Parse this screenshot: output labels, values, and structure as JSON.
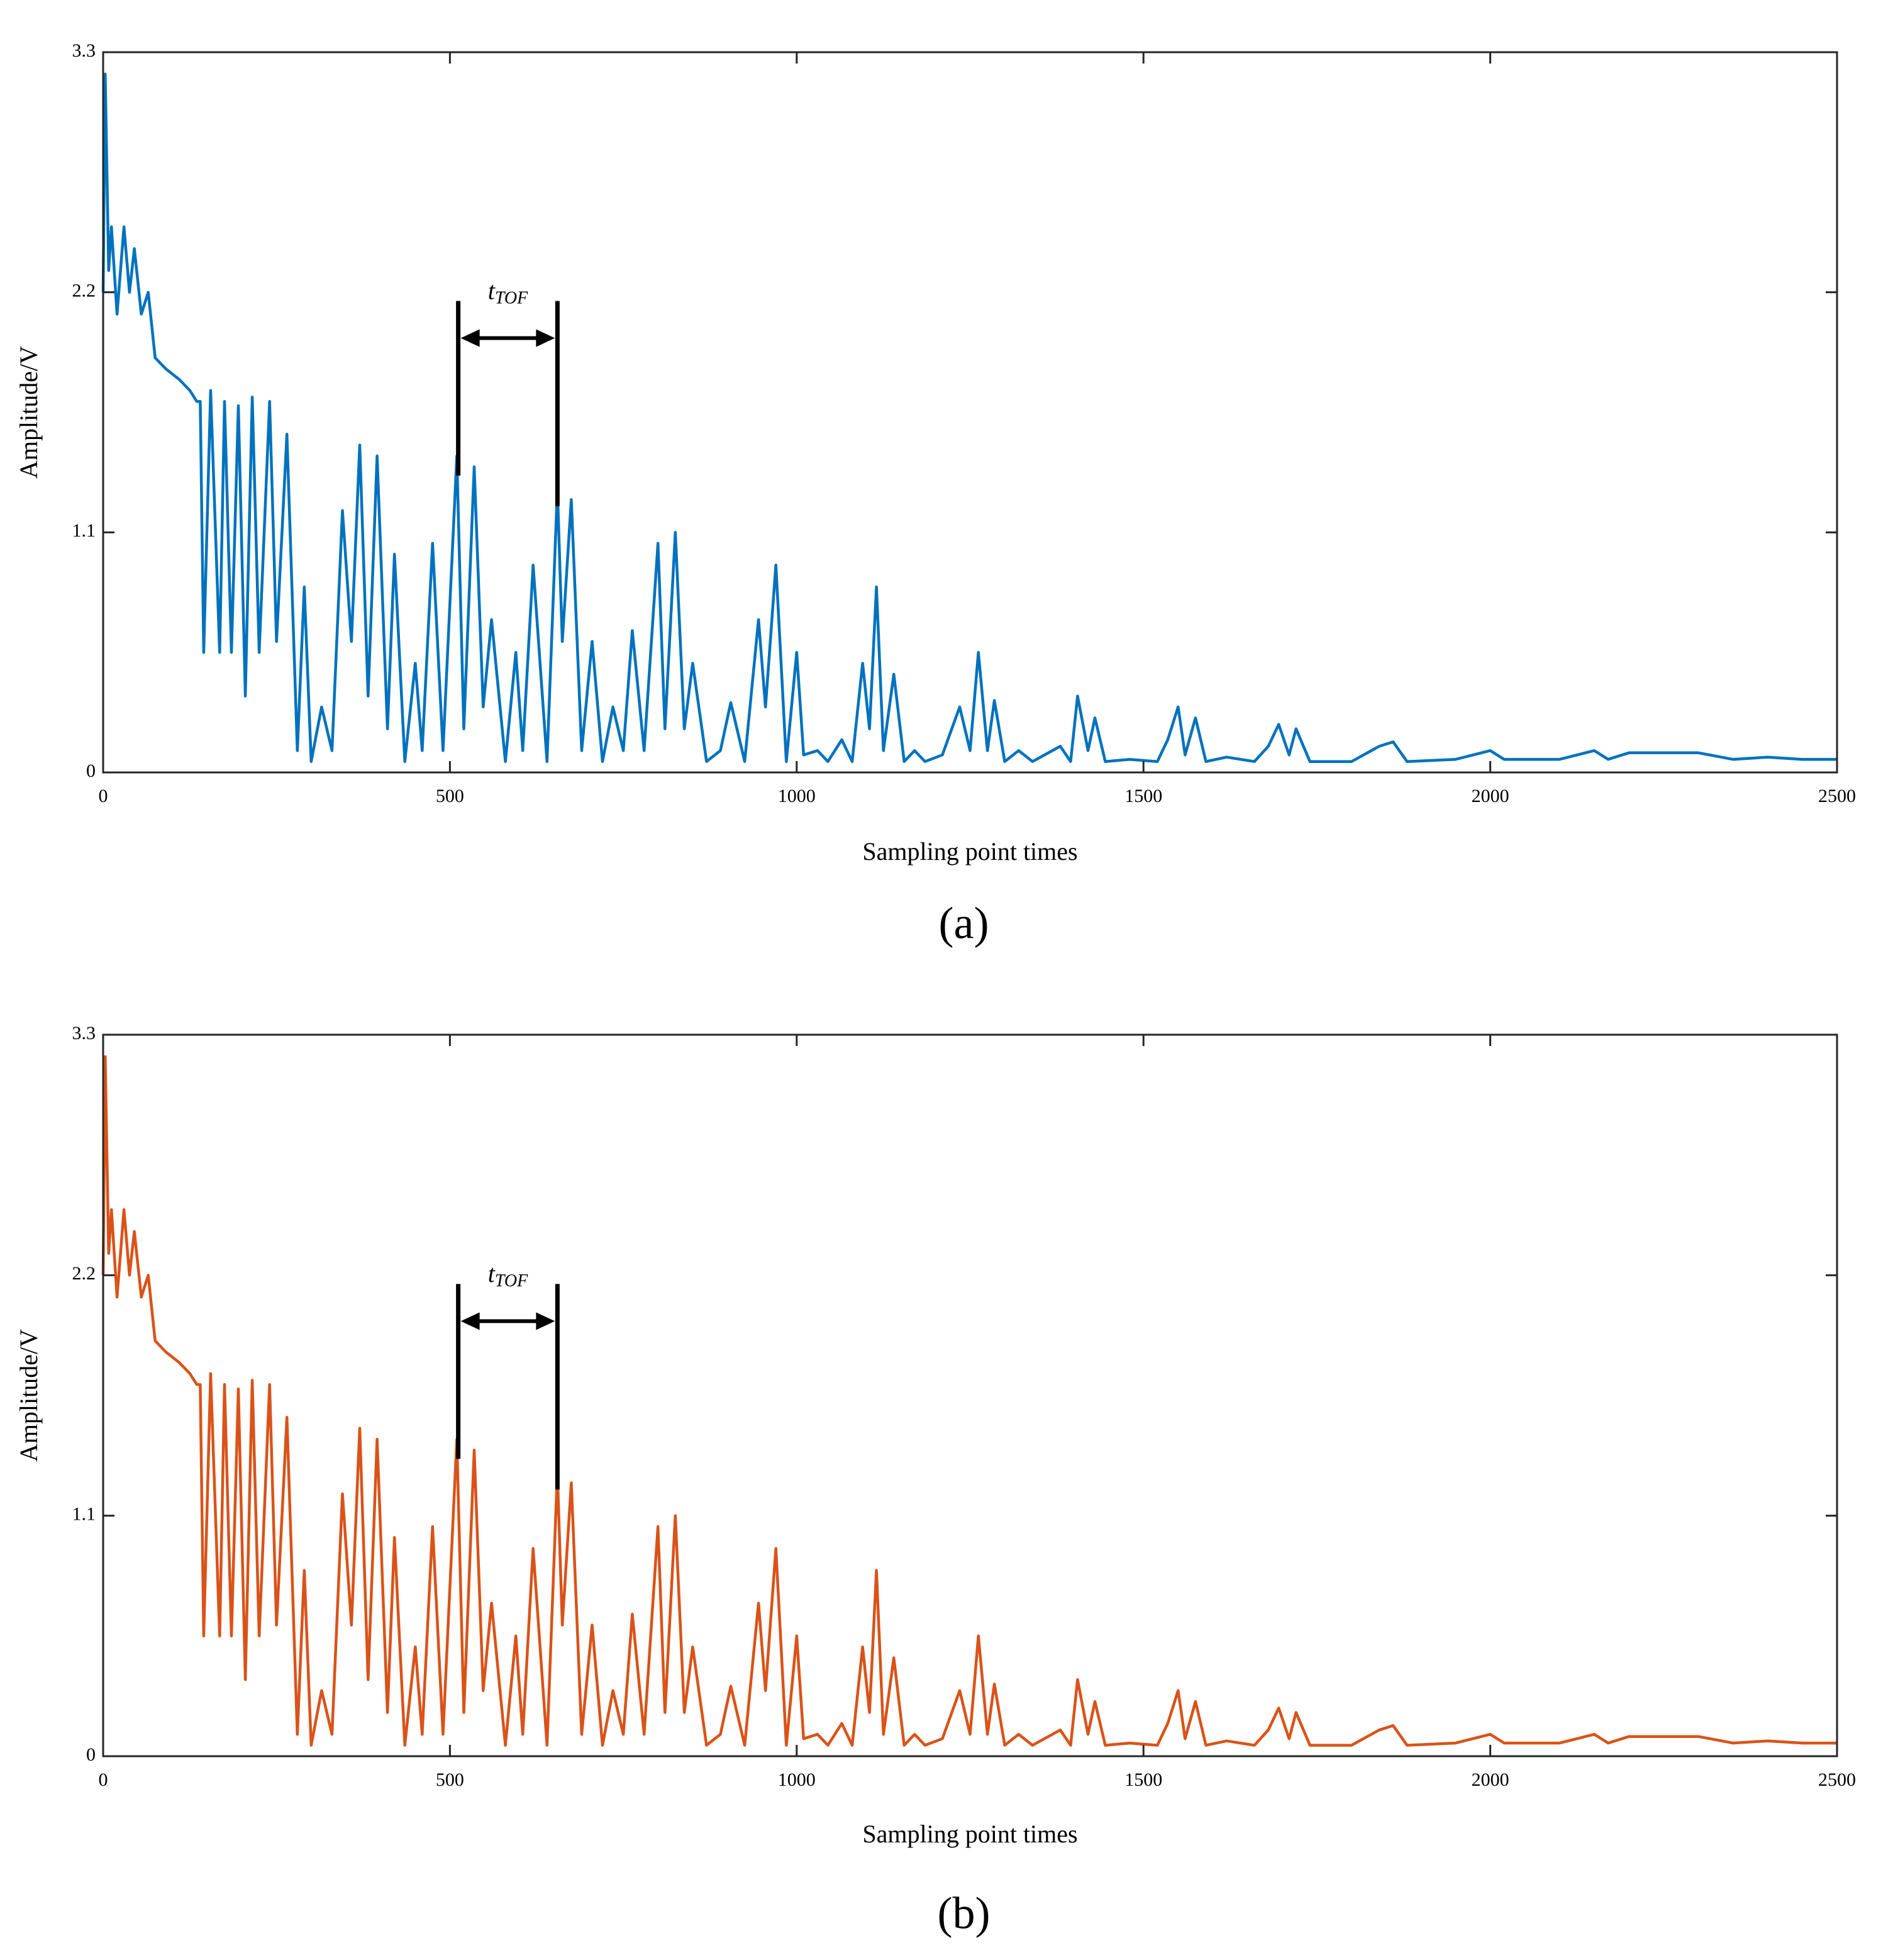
{
  "chart_data": [
    {
      "type": "line",
      "caption": "(a)",
      "xlabel": "Sampling point times",
      "ylabel": "Amplitude/V",
      "color": "#0072BD",
      "xlim": [
        0,
        2500
      ],
      "xticks": [
        0,
        500,
        1000,
        1500,
        2000,
        2500
      ],
      "ylim": [
        0,
        3.3
      ],
      "yticks": [
        0,
        1.1,
        2.2,
        3.3
      ],
      "annotation": {
        "text": "t",
        "subscript": "TOF",
        "x": [
          512,
          655
        ],
        "y_top": 2.16,
        "y_arrow": 1.99,
        "y_bottom": [
          1.36,
          1.22
        ]
      },
      "x": [
        0,
        3,
        8,
        12,
        20,
        30,
        38,
        45,
        55,
        65,
        75,
        90,
        110,
        125,
        135,
        140,
        145,
        155,
        168,
        175,
        185,
        195,
        205,
        215,
        225,
        240,
        250,
        265,
        280,
        290,
        300,
        315,
        330,
        345,
        358,
        370,
        382,
        395,
        410,
        420,
        435,
        450,
        460,
        475,
        490,
        510,
        520,
        535,
        548,
        560,
        580,
        595,
        605,
        620,
        640,
        655,
        662,
        675,
        690,
        705,
        720,
        735,
        750,
        763,
        780,
        800,
        810,
        825,
        838,
        850,
        870,
        890,
        905,
        925,
        945,
        955,
        970,
        985,
        1000,
        1010,
        1030,
        1045,
        1065,
        1080,
        1095,
        1105,
        1115,
        1125,
        1140,
        1155,
        1170,
        1185,
        1210,
        1235,
        1250,
        1262,
        1275,
        1285,
        1300,
        1320,
        1340,
        1380,
        1395,
        1405,
        1420,
        1430,
        1445,
        1480,
        1520,
        1535,
        1550,
        1560,
        1575,
        1590,
        1620,
        1660,
        1680,
        1695,
        1710,
        1720,
        1740,
        1800,
        1840,
        1860,
        1880,
        1950,
        2000,
        2020,
        2100,
        2150,
        2170,
        2200,
        2300,
        2350,
        2400,
        2450,
        2500
      ],
      "values": [
        2.2,
        3.2,
        2.3,
        2.5,
        2.1,
        2.5,
        2.2,
        2.4,
        2.1,
        2.2,
        1.9,
        1.85,
        1.8,
        1.75,
        1.7,
        1.7,
        0.55,
        1.75,
        0.55,
        1.7,
        0.55,
        1.68,
        0.35,
        1.72,
        0.55,
        1.7,
        0.6,
        1.55,
        0.1,
        0.85,
        0.05,
        0.3,
        0.1,
        1.2,
        0.6,
        1.5,
        0.35,
        1.45,
        0.2,
        1.0,
        0.05,
        0.5,
        0.1,
        1.05,
        0.1,
        1.45,
        0.2,
        1.4,
        0.3,
        0.7,
        0.05,
        0.55,
        0.1,
        0.95,
        0.05,
        1.3,
        0.6,
        1.25,
        0.1,
        0.6,
        0.05,
        0.3,
        0.1,
        0.65,
        0.1,
        1.05,
        0.2,
        1.1,
        0.2,
        0.5,
        0.05,
        0.1,
        0.32,
        0.05,
        0.7,
        0.3,
        0.95,
        0.05,
        0.55,
        0.08,
        0.1,
        0.05,
        0.15,
        0.05,
        0.5,
        0.2,
        0.85,
        0.1,
        0.45,
        0.05,
        0.1,
        0.05,
        0.08,
        0.3,
        0.1,
        0.55,
        0.1,
        0.33,
        0.05,
        0.1,
        0.05,
        0.12,
        0.05,
        0.35,
        0.1,
        0.25,
        0.05,
        0.06,
        0.05,
        0.15,
        0.3,
        0.08,
        0.25,
        0.05,
        0.07,
        0.05,
        0.12,
        0.22,
        0.08,
        0.2,
        0.05,
        0.05,
        0.12,
        0.14,
        0.05,
        0.06,
        0.1,
        0.06,
        0.06,
        0.1,
        0.06,
        0.09,
        0.09,
        0.06,
        0.07,
        0.06,
        0.06
      ]
    },
    {
      "type": "line",
      "caption": "(b)",
      "xlabel": "Sampling point times",
      "ylabel": "Amplitude/V",
      "color": "#D95319",
      "xlim": [
        0,
        2500
      ],
      "xticks": [
        0,
        500,
        1000,
        1500,
        2000,
        2500
      ],
      "ylim": [
        0,
        3.3
      ],
      "yticks": [
        0,
        1.1,
        2.2,
        3.3
      ],
      "annotation": {
        "text": "t",
        "subscript": "TOF",
        "x": [
          512,
          655
        ],
        "y_top": 2.16,
        "y_arrow": 1.99,
        "y_bottom": [
          1.36,
          1.22
        ]
      },
      "x": [
        0,
        3,
        8,
        12,
        20,
        30,
        38,
        45,
        55,
        65,
        75,
        90,
        110,
        125,
        135,
        140,
        145,
        155,
        168,
        175,
        185,
        195,
        205,
        215,
        225,
        240,
        250,
        265,
        280,
        290,
        300,
        315,
        330,
        345,
        358,
        370,
        382,
        395,
        410,
        420,
        435,
        450,
        460,
        475,
        490,
        510,
        520,
        535,
        548,
        560,
        580,
        595,
        605,
        620,
        640,
        655,
        662,
        675,
        690,
        705,
        720,
        735,
        750,
        763,
        780,
        800,
        810,
        825,
        838,
        850,
        870,
        890,
        905,
        925,
        945,
        955,
        970,
        985,
        1000,
        1010,
        1030,
        1045,
        1065,
        1080,
        1095,
        1105,
        1115,
        1125,
        1140,
        1155,
        1170,
        1185,
        1210,
        1235,
        1250,
        1262,
        1275,
        1285,
        1300,
        1320,
        1340,
        1380,
        1395,
        1405,
        1420,
        1430,
        1445,
        1480,
        1520,
        1535,
        1550,
        1560,
        1575,
        1590,
        1620,
        1660,
        1680,
        1695,
        1710,
        1720,
        1740,
        1800,
        1840,
        1860,
        1880,
        1950,
        2000,
        2020,
        2100,
        2150,
        2170,
        2200,
        2300,
        2350,
        2400,
        2450,
        2500
      ],
      "values": [
        2.2,
        3.2,
        2.3,
        2.5,
        2.1,
        2.5,
        2.2,
        2.4,
        2.1,
        2.2,
        1.9,
        1.85,
        1.8,
        1.75,
        1.7,
        1.7,
        0.55,
        1.75,
        0.55,
        1.7,
        0.55,
        1.68,
        0.35,
        1.72,
        0.55,
        1.7,
        0.6,
        1.55,
        0.1,
        0.85,
        0.05,
        0.3,
        0.1,
        1.2,
        0.6,
        1.5,
        0.35,
        1.45,
        0.2,
        1.0,
        0.05,
        0.5,
        0.1,
        1.05,
        0.1,
        1.45,
        0.2,
        1.4,
        0.3,
        0.7,
        0.05,
        0.55,
        0.1,
        0.95,
        0.05,
        1.3,
        0.6,
        1.25,
        0.1,
        0.6,
        0.05,
        0.3,
        0.1,
        0.65,
        0.1,
        1.05,
        0.2,
        1.1,
        0.2,
        0.5,
        0.05,
        0.1,
        0.32,
        0.05,
        0.7,
        0.3,
        0.95,
        0.05,
        0.55,
        0.08,
        0.1,
        0.05,
        0.15,
        0.05,
        0.5,
        0.2,
        0.85,
        0.1,
        0.45,
        0.05,
        0.1,
        0.05,
        0.08,
        0.3,
        0.1,
        0.55,
        0.1,
        0.33,
        0.05,
        0.1,
        0.05,
        0.12,
        0.05,
        0.35,
        0.1,
        0.25,
        0.05,
        0.06,
        0.05,
        0.15,
        0.3,
        0.08,
        0.25,
        0.05,
        0.07,
        0.05,
        0.12,
        0.22,
        0.08,
        0.2,
        0.05,
        0.05,
        0.12,
        0.14,
        0.05,
        0.06,
        0.1,
        0.06,
        0.06,
        0.1,
        0.06,
        0.09,
        0.09,
        0.06,
        0.07,
        0.06,
        0.06
      ]
    }
  ]
}
